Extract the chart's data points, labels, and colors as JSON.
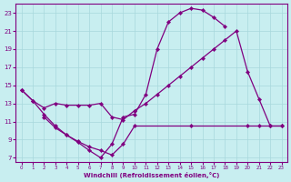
{
  "xlabel": "Windchill (Refroidissement éolien,°C)",
  "bg_color": "#c8eef0",
  "grid_color": "#a8d8dc",
  "line_color": "#800080",
  "xlim": [
    -0.5,
    23.5
  ],
  "ylim": [
    6.5,
    24.0
  ],
  "yticks": [
    7,
    9,
    11,
    13,
    15,
    17,
    19,
    21,
    23
  ],
  "xticks": [
    0,
    1,
    2,
    3,
    4,
    5,
    6,
    7,
    8,
    9,
    10,
    11,
    12,
    13,
    14,
    15,
    16,
    17,
    18,
    19,
    20,
    21,
    22,
    23
  ],
  "line1_x": [
    0,
    1,
    2,
    3,
    4,
    5,
    6,
    7,
    8,
    9,
    10,
    11,
    12,
    13,
    14,
    15,
    16,
    17,
    18
  ],
  "line1_y": [
    14.5,
    13.3,
    11.8,
    10.5,
    9.5,
    8.7,
    7.8,
    7.0,
    8.5,
    11.5,
    11.8,
    14.0,
    19.0,
    22.0,
    23.0,
    23.5,
    23.3,
    22.5,
    21.5
  ],
  "line2_x": [
    0,
    1,
    2,
    3,
    4,
    5,
    6,
    7,
    8,
    9,
    10,
    11,
    12,
    13,
    14,
    15,
    16,
    17,
    18,
    19,
    20,
    21,
    22,
    23
  ],
  "line2_y": [
    14.5,
    13.3,
    12.5,
    13.0,
    12.8,
    12.8,
    12.8,
    13.0,
    11.5,
    11.2,
    12.2,
    13.0,
    14.0,
    15.0,
    16.0,
    17.0,
    18.0,
    19.0,
    20.0,
    21.0,
    16.5,
    13.5,
    10.5,
    10.5
  ],
  "line3_x": [
    2,
    3,
    4,
    5,
    6,
    7,
    8,
    9,
    10,
    15,
    20,
    21,
    22,
    23
  ],
  "line3_y": [
    11.5,
    10.3,
    9.5,
    8.8,
    8.2,
    7.8,
    7.3,
    8.5,
    10.5,
    10.5,
    10.5,
    10.5,
    10.5,
    10.5
  ]
}
